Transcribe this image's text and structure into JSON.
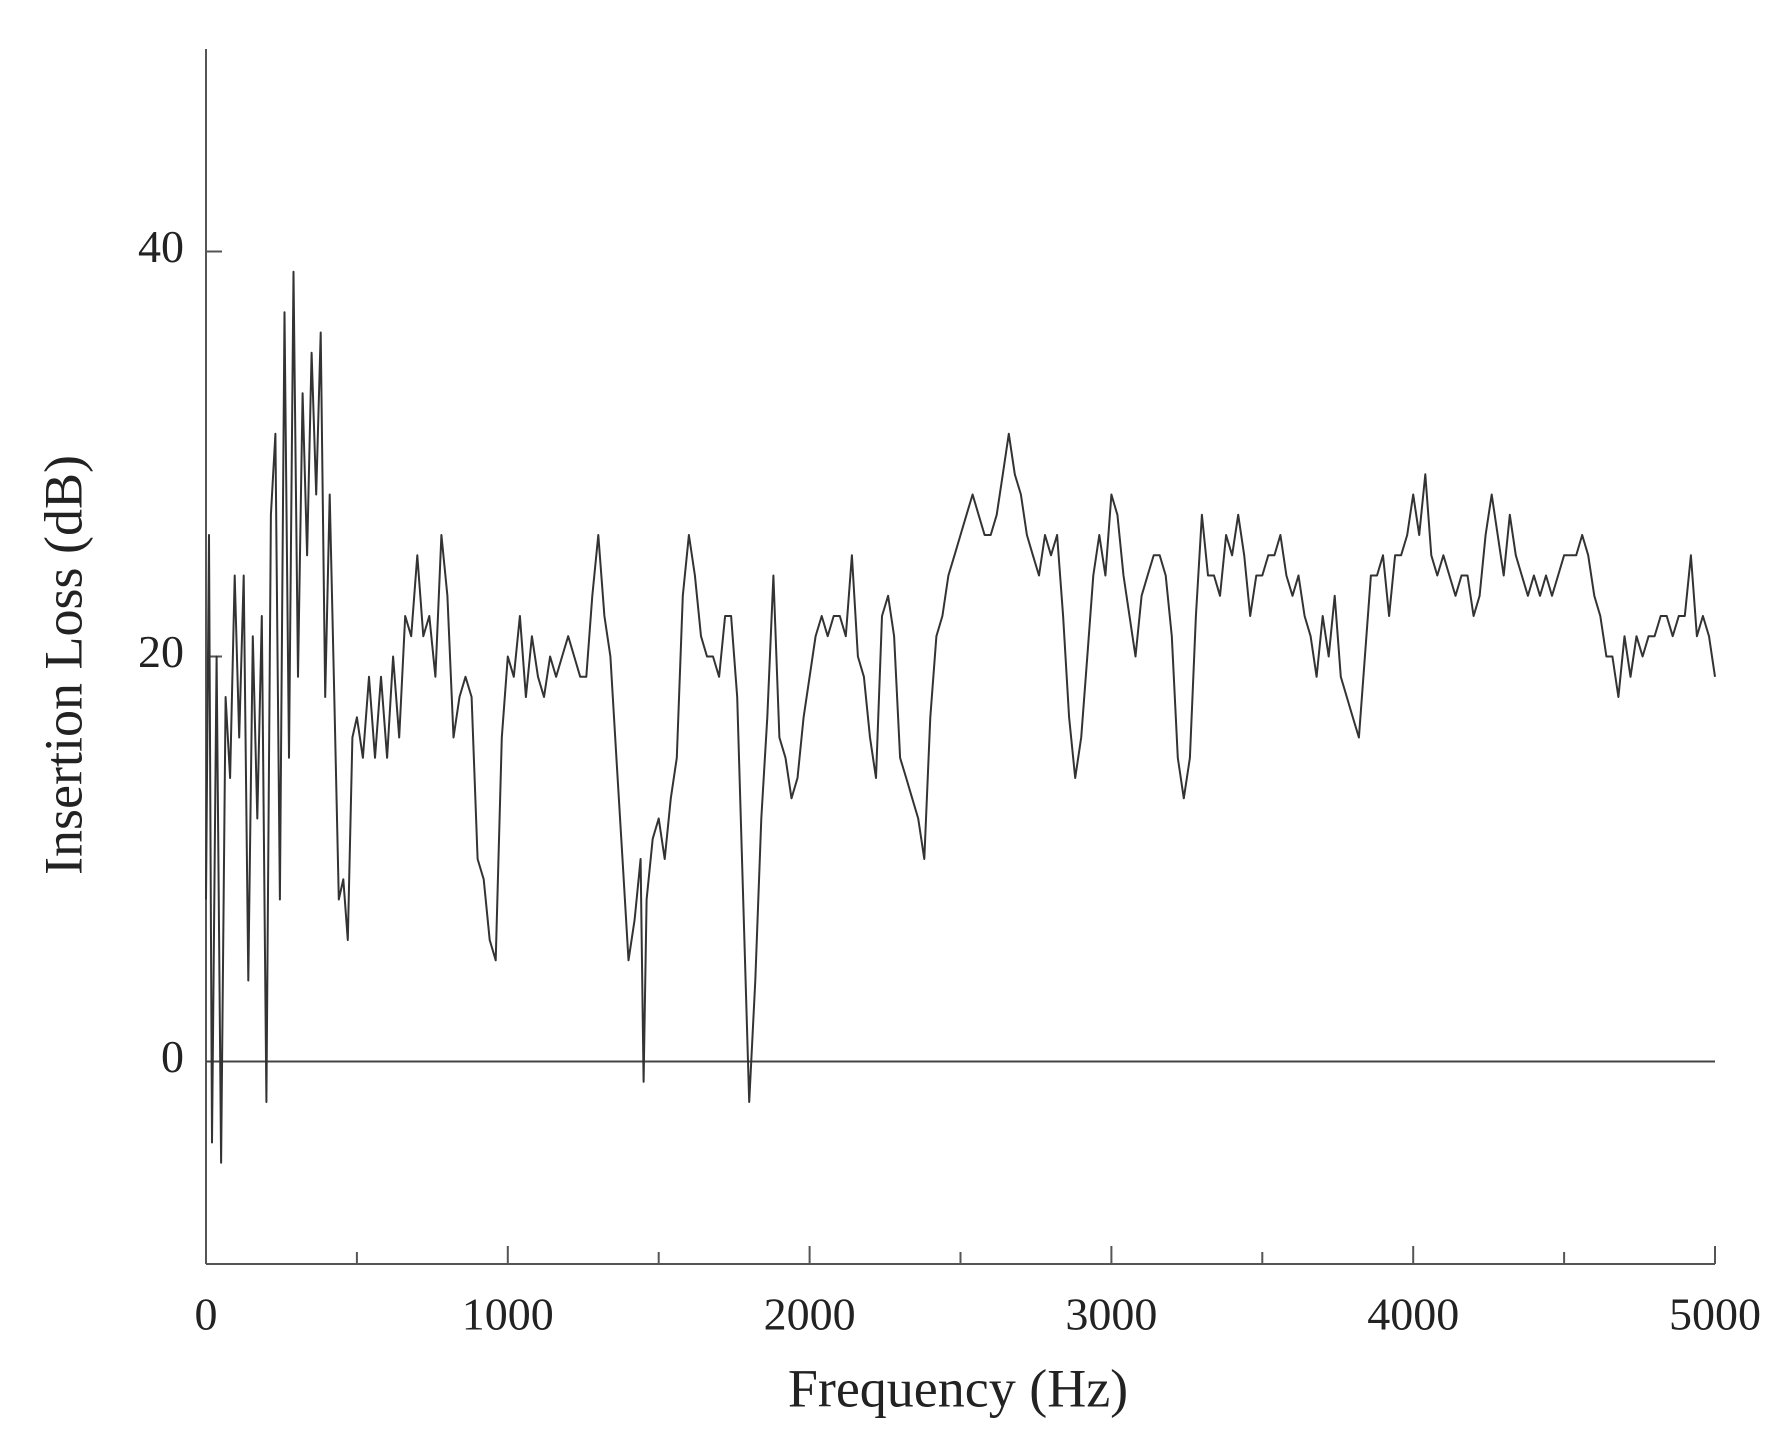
{
  "chart_data": {
    "type": "line",
    "x_label": "Frequency (Hz)",
    "y_label": "Insertion Loss (dB)",
    "xlim": [
      0,
      5000
    ],
    "xticks": [
      0,
      1000,
      2000,
      3000,
      4000,
      5000
    ],
    "xminorticks": [
      500,
      1500,
      2500,
      3500,
      4500
    ],
    "ylim": [
      -10,
      50
    ],
    "yticks": [
      0,
      20,
      40
    ],
    "hline": 0,
    "color": "#333333",
    "x": [
      0,
      10,
      20,
      35,
      50,
      65,
      80,
      95,
      110,
      125,
      140,
      155,
      170,
      185,
      200,
      215,
      230,
      245,
      260,
      275,
      290,
      305,
      320,
      335,
      350,
      365,
      380,
      395,
      410,
      425,
      440,
      455,
      470,
      485,
      500,
      520,
      540,
      560,
      580,
      600,
      620,
      640,
      660,
      680,
      700,
      720,
      740,
      760,
      780,
      800,
      820,
      840,
      860,
      880,
      900,
      920,
      940,
      960,
      980,
      1000,
      1020,
      1040,
      1060,
      1080,
      1100,
      1120,
      1140,
      1160,
      1180,
      1200,
      1220,
      1240,
      1260,
      1280,
      1300,
      1320,
      1340,
      1360,
      1380,
      1400,
      1420,
      1440,
      1450,
      1460,
      1480,
      1500,
      1520,
      1540,
      1560,
      1580,
      1600,
      1620,
      1640,
      1660,
      1680,
      1700,
      1720,
      1740,
      1760,
      1780,
      1800,
      1820,
      1840,
      1860,
      1880,
      1900,
      1920,
      1940,
      1960,
      1980,
      2000,
      2020,
      2040,
      2060,
      2080,
      2100,
      2120,
      2140,
      2160,
      2180,
      2200,
      2220,
      2240,
      2260,
      2280,
      2300,
      2320,
      2340,
      2360,
      2380,
      2400,
      2420,
      2440,
      2460,
      2480,
      2500,
      2520,
      2540,
      2560,
      2580,
      2600,
      2620,
      2640,
      2660,
      2680,
      2700,
      2720,
      2740,
      2760,
      2780,
      2800,
      2820,
      2840,
      2860,
      2880,
      2900,
      2920,
      2940,
      2960,
      2980,
      3000,
      3020,
      3040,
      3060,
      3080,
      3100,
      3120,
      3140,
      3160,
      3180,
      3200,
      3220,
      3240,
      3260,
      3280,
      3300,
      3320,
      3340,
      3360,
      3380,
      3400,
      3420,
      3440,
      3460,
      3480,
      3500,
      3520,
      3540,
      3560,
      3580,
      3600,
      3620,
      3640,
      3660,
      3680,
      3700,
      3720,
      3740,
      3760,
      3780,
      3800,
      3820,
      3840,
      3860,
      3880,
      3900,
      3920,
      3940,
      3960,
      3980,
      4000,
      4020,
      4040,
      4060,
      4080,
      4100,
      4120,
      4140,
      4160,
      4180,
      4200,
      4220,
      4240,
      4260,
      4280,
      4300,
      4320,
      4340,
      4360,
      4380,
      4400,
      4420,
      4440,
      4460,
      4480,
      4500,
      4520,
      4540,
      4560,
      4580,
      4600,
      4620,
      4640,
      4660,
      4680,
      4700,
      4720,
      4740,
      4760,
      4780,
      4800,
      4820,
      4840,
      4860,
      4880,
      4900,
      4920,
      4940,
      4960,
      4980,
      5000
    ],
    "values": [
      8,
      26,
      -4,
      20,
      -5,
      18,
      14,
      24,
      16,
      24,
      4,
      21,
      12,
      22,
      -2,
      27,
      31,
      8,
      37,
      15,
      39,
      19,
      33,
      25,
      35,
      28,
      36,
      18,
      28,
      18,
      8,
      9,
      6,
      16,
      17,
      15,
      19,
      15,
      19,
      15,
      20,
      16,
      22,
      21,
      25,
      21,
      22,
      19,
      26,
      23,
      16,
      18,
      19,
      18,
      10,
      9,
      6,
      5,
      16,
      20,
      19,
      22,
      18,
      21,
      19,
      18,
      20,
      19,
      20,
      21,
      20,
      19,
      19,
      23,
      26,
      22,
      20,
      15,
      10,
      5,
      7,
      10,
      -1,
      8,
      11,
      12,
      10,
      13,
      15,
      23,
      26,
      24,
      21,
      20,
      20,
      19,
      22,
      22,
      18,
      8,
      -2,
      4,
      12,
      17,
      24,
      16,
      15,
      13,
      14,
      17,
      19,
      21,
      22,
      21,
      22,
      22,
      21,
      25,
      20,
      19,
      16,
      14,
      22,
      23,
      21,
      15,
      14,
      13,
      12,
      10,
      17,
      21,
      22,
      24,
      25,
      26,
      27,
      28,
      27,
      26,
      26,
      27,
      29,
      31,
      29,
      28,
      26,
      25,
      24,
      26,
      25,
      26,
      22,
      17,
      14,
      16,
      20,
      24,
      26,
      24,
      28,
      27,
      24,
      22,
      20,
      23,
      24,
      25,
      25,
      24,
      21,
      15,
      13,
      15,
      22,
      27,
      24,
      24,
      23,
      26,
      25,
      27,
      25,
      22,
      24,
      24,
      25,
      25,
      26,
      24,
      23,
      24,
      22,
      21,
      19,
      22,
      20,
      23,
      19,
      18,
      17,
      16,
      20,
      24,
      24,
      25,
      22,
      25,
      25,
      26,
      28,
      26,
      29,
      25,
      24,
      25,
      24,
      23,
      24,
      24,
      22,
      23,
      26,
      28,
      26,
      24,
      27,
      25,
      24,
      23,
      24,
      23,
      24,
      23,
      24,
      25,
      25,
      25,
      26,
      25,
      23,
      22,
      20,
      20,
      18,
      21,
      19,
      21,
      20,
      21,
      21,
      22,
      22,
      21,
      22,
      22,
      25,
      21,
      22,
      21,
      19
    ]
  }
}
